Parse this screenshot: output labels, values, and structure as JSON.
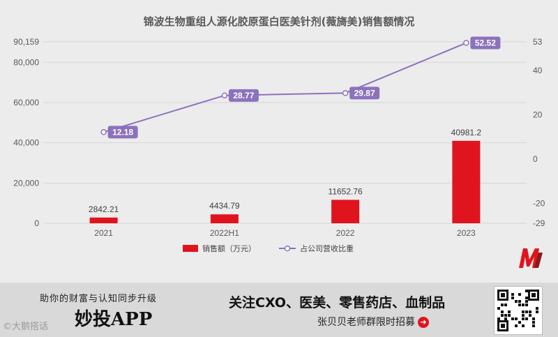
{
  "chart_data": {
    "type": "bar+line",
    "title": "锦波生物重组人源化胶原蛋白医美针剂(薇旖美)销售额情况",
    "categories": [
      "2021",
      "2022H1",
      "2022",
      "2023"
    ],
    "series": [
      {
        "name": "销售额（万元）",
        "type": "bar",
        "axis": "left",
        "color": "#e0141e",
        "values": [
          2842.21,
          4434.79,
          11652.76,
          40981.2
        ],
        "labels": [
          "2842.21",
          "4434.79",
          "11652.76",
          "40981.2"
        ]
      },
      {
        "name": "占公司营收比重",
        "type": "line",
        "axis": "right",
        "color": "#8c72bd",
        "values": [
          12.18,
          28.77,
          29.87,
          52.52
        ],
        "labels": [
          "12.18",
          "28.77",
          "29.87",
          "52.52"
        ]
      }
    ],
    "left_axis": {
      "min": 0,
      "max": 90159,
      "ticks": [
        "0",
        "20,000",
        "40,000",
        "60,000",
        "80,000",
        "90,159"
      ],
      "tick_values": [
        0,
        20000,
        40000,
        60000,
        80000,
        90159
      ]
    },
    "right_axis": {
      "min": -29,
      "max": 53,
      "ticks": [
        "-29",
        "-20",
        "0",
        "20",
        "40",
        "53"
      ],
      "tick_values": [
        -29,
        -20,
        0,
        20,
        40,
        53
      ]
    },
    "grid": true,
    "legend_position": "bottom"
  },
  "banner": {
    "slogan": "助你的财富与认知同步升级",
    "app_name": "妙投APP",
    "headline": "关注CXO、医美、零售药店、血制品",
    "subline": "张贝贝老师群限时招募",
    "arrow": "➜",
    "watermark": "©大鹅搭话"
  },
  "colors": {
    "background": "#ececec",
    "banner": "#d9d9d9",
    "bar": "#e0141e",
    "line": "#8c72bd",
    "grid": "#d6d6d6"
  },
  "icons": {
    "logo": "m-logo-icon",
    "qr": "qr-code-icon",
    "arrow": "arrow-right-icon"
  }
}
